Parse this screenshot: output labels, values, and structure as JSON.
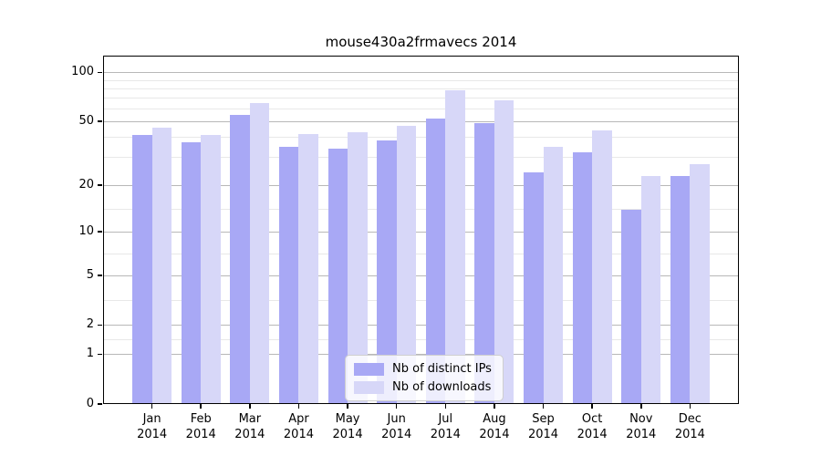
{
  "chart_data": {
    "type": "bar",
    "title": "mouse430a2frmavecs 2014",
    "categories": [
      "Jan",
      "Feb",
      "Mar",
      "Apr",
      "May",
      "Jun",
      "Jul",
      "Aug",
      "Sep",
      "Oct",
      "Nov",
      "Dec"
    ],
    "x_tick_year": "2014",
    "series": [
      {
        "name": "Nb of distinct IPs",
        "color": "#a8a8f5",
        "values": [
          41,
          37,
          55,
          35,
          34,
          38,
          52,
          49,
          24,
          32,
          14,
          23
        ]
      },
      {
        "name": "Nb of downloads",
        "color": "#d7d7f8",
        "values": [
          46,
          41,
          65,
          42,
          43,
          47,
          78,
          67,
          35,
          44,
          23,
          27
        ]
      }
    ],
    "y_scale": "log10(1+x)",
    "y_major_ticks": [
      0,
      1,
      2,
      5,
      10,
      20,
      50,
      100
    ],
    "y_minor_gridlines": [
      1.45,
      3.24,
      7.12,
      14.2,
      30,
      40,
      60,
      70,
      80,
      90
    ],
    "ylim_top": 126,
    "grid": true,
    "legend_position": "inside lower-center",
    "colors": {
      "major_grid": "#b8b8b8",
      "minor_grid": "#e8e8e8",
      "axis": "#000000",
      "background": "#ffffff"
    }
  }
}
